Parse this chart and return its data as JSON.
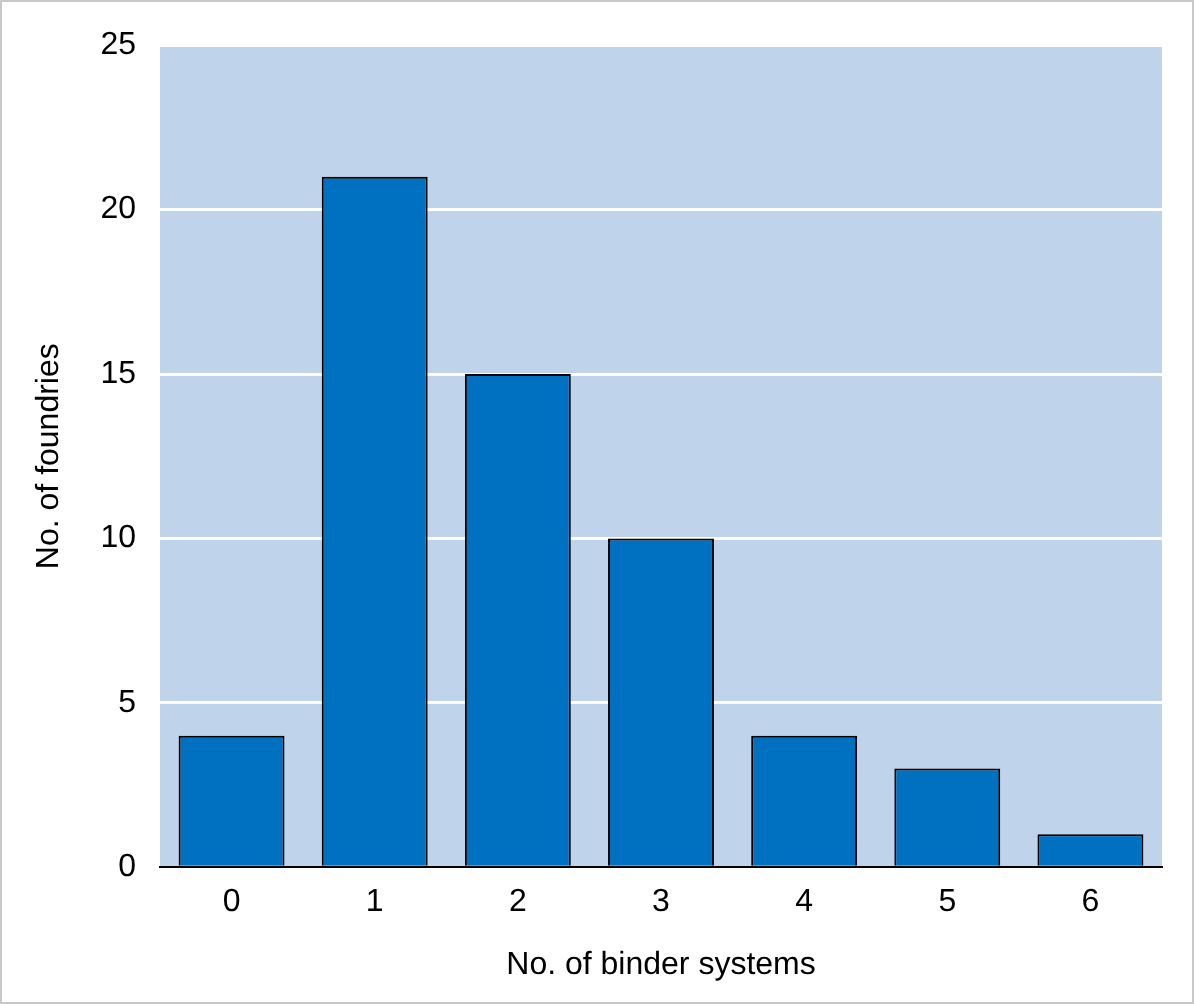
{
  "chart_data": {
    "type": "bar",
    "xlabel": "No. of binder systems",
    "ylabel": "No. of foundries",
    "categories": [
      "0",
      "1",
      "2",
      "3",
      "4",
      "5",
      "6"
    ],
    "values": [
      4,
      21,
      15,
      10,
      4,
      3,
      1
    ],
    "color": "#0070c0",
    "ylim": [
      0,
      25
    ],
    "yticks": [
      0,
      5,
      10,
      15,
      20,
      25
    ],
    "grid": "y",
    "legend": false
  }
}
